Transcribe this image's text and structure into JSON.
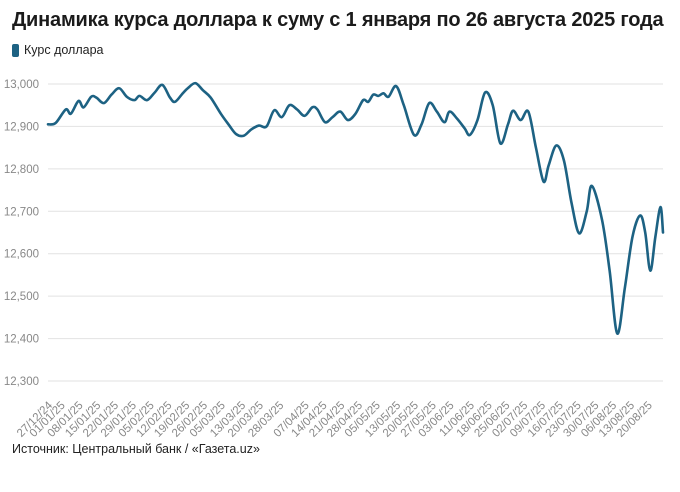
{
  "title": "Динамика курса доллара к суму с 1 января по 26 августа 2025 года",
  "source": "Источник: Центральный банк / «Газета.uz»",
  "colors": {
    "line": "#1d6283",
    "grid": "#e2e2e2",
    "tick_text": "#888888"
  },
  "chart_data": {
    "type": "line",
    "title": "Динамика курса доллара к суму с 1 января по 26 августа 2025 года",
    "xlabel": "",
    "ylabel": "",
    "ylim": [
      12300,
      13000
    ],
    "yticks": [
      12300,
      12400,
      12500,
      12600,
      12700,
      12800,
      12900,
      13000
    ],
    "ytick_labels": [
      "12,300",
      "12,400",
      "12,500",
      "12,600",
      "12,700",
      "12,800",
      "12,900",
      "13,000"
    ],
    "xlim": [
      "2024-12-27",
      "2025-08-26"
    ],
    "xtick_labels": [
      "27/12/24",
      "01/01/25",
      "08/01/25",
      "15/01/25",
      "22/01/25",
      "29/01/25",
      "05/02/25",
      "12/02/25",
      "19/02/25",
      "26/02/25",
      "05/03/25",
      "13/03/25",
      "20/03/25",
      "28/03/25",
      "07/04/25",
      "14/04/25",
      "21/04/25",
      "28/04/25",
      "05/05/25",
      "13/05/25",
      "20/05/25",
      "27/05/25",
      "03/06/25",
      "11/06/25",
      "18/06/25",
      "25/06/25",
      "02/07/25",
      "09/07/25",
      "16/07/25",
      "23/07/25",
      "30/07/25",
      "06/08/25",
      "13/08/25",
      "20/08/25"
    ],
    "xticks": [
      "2024-12-27",
      "2025-01-01",
      "2025-01-08",
      "2025-01-15",
      "2025-01-22",
      "2025-01-29",
      "2025-02-05",
      "2025-02-12",
      "2025-02-19",
      "2025-02-26",
      "2025-03-05",
      "2025-03-13",
      "2025-03-20",
      "2025-03-28",
      "2025-04-07",
      "2025-04-14",
      "2025-04-21",
      "2025-04-28",
      "2025-05-05",
      "2025-05-13",
      "2025-05-20",
      "2025-05-27",
      "2025-06-03",
      "2025-06-11",
      "2025-06-18",
      "2025-06-25",
      "2025-07-02",
      "2025-07-09",
      "2025-07-16",
      "2025-07-23",
      "2025-07-30",
      "2025-08-06",
      "2025-08-13",
      "2025-08-20"
    ],
    "grid": true,
    "legend": "top-left",
    "series": [
      {
        "name": "Курс доллара",
        "points": [
          [
            "2024-12-27",
            12905
          ],
          [
            "2024-12-30",
            12908
          ],
          [
            "2025-01-03",
            12940
          ],
          [
            "2025-01-05",
            12930
          ],
          [
            "2025-01-08",
            12960
          ],
          [
            "2025-01-10",
            12945
          ],
          [
            "2025-01-13",
            12970
          ],
          [
            "2025-01-15",
            12968
          ],
          [
            "2025-01-18",
            12955
          ],
          [
            "2025-01-21",
            12975
          ],
          [
            "2025-01-24",
            12990
          ],
          [
            "2025-01-27",
            12970
          ],
          [
            "2025-01-30",
            12962
          ],
          [
            "2025-02-01",
            12972
          ],
          [
            "2025-02-04",
            12962
          ],
          [
            "2025-02-07",
            12980
          ],
          [
            "2025-02-10",
            12998
          ],
          [
            "2025-02-13",
            12968
          ],
          [
            "2025-02-15",
            12958
          ],
          [
            "2025-02-18",
            12978
          ],
          [
            "2025-02-20",
            12990
          ],
          [
            "2025-02-23",
            13002
          ],
          [
            "2025-02-26",
            12985
          ],
          [
            "2025-03-01",
            12968
          ],
          [
            "2025-03-05",
            12930
          ],
          [
            "2025-03-08",
            12905
          ],
          [
            "2025-03-11",
            12882
          ],
          [
            "2025-03-14",
            12878
          ],
          [
            "2025-03-17",
            12893
          ],
          [
            "2025-03-20",
            12902
          ],
          [
            "2025-03-23",
            12900
          ],
          [
            "2025-03-26",
            12938
          ],
          [
            "2025-03-29",
            12922
          ],
          [
            "2025-04-01",
            12950
          ],
          [
            "2025-04-04",
            12940
          ],
          [
            "2025-04-07",
            12925
          ],
          [
            "2025-04-10",
            12945
          ],
          [
            "2025-04-12",
            12940
          ],
          [
            "2025-04-15",
            12910
          ],
          [
            "2025-04-18",
            12922
          ],
          [
            "2025-04-21",
            12935
          ],
          [
            "2025-04-24",
            12915
          ],
          [
            "2025-04-27",
            12930
          ],
          [
            "2025-04-30",
            12962
          ],
          [
            "2025-05-02",
            12958
          ],
          [
            "2025-05-04",
            12975
          ],
          [
            "2025-05-06",
            12972
          ],
          [
            "2025-05-08",
            12978
          ],
          [
            "2025-05-10",
            12970
          ],
          [
            "2025-05-13",
            12995
          ],
          [
            "2025-05-16",
            12950
          ],
          [
            "2025-05-20",
            12880
          ],
          [
            "2025-05-23",
            12905
          ],
          [
            "2025-05-26",
            12955
          ],
          [
            "2025-05-29",
            12935
          ],
          [
            "2025-06-01",
            12910
          ],
          [
            "2025-06-03",
            12935
          ],
          [
            "2025-06-06",
            12918
          ],
          [
            "2025-06-09",
            12895
          ],
          [
            "2025-06-11",
            12880
          ],
          [
            "2025-06-14",
            12915
          ],
          [
            "2025-06-17",
            12980
          ],
          [
            "2025-06-20",
            12950
          ],
          [
            "2025-06-23",
            12860
          ],
          [
            "2025-06-26",
            12905
          ],
          [
            "2025-06-28",
            12937
          ],
          [
            "2025-07-01",
            12915
          ],
          [
            "2025-07-04",
            12935
          ],
          [
            "2025-07-07",
            12850
          ],
          [
            "2025-07-10",
            12770
          ],
          [
            "2025-07-12",
            12808
          ],
          [
            "2025-07-15",
            12855
          ],
          [
            "2025-07-18",
            12820
          ],
          [
            "2025-07-21",
            12720
          ],
          [
            "2025-07-24",
            12648
          ],
          [
            "2025-07-27",
            12700
          ],
          [
            "2025-07-29",
            12760
          ],
          [
            "2025-08-02",
            12680
          ],
          [
            "2025-08-05",
            12560
          ],
          [
            "2025-08-08",
            12412
          ],
          [
            "2025-08-11",
            12520
          ],
          [
            "2025-08-14",
            12640
          ],
          [
            "2025-08-17",
            12690
          ],
          [
            "2025-08-19",
            12650
          ],
          [
            "2025-08-21",
            12560
          ],
          [
            "2025-08-23",
            12640
          ],
          [
            "2025-08-25",
            12710
          ],
          [
            "2025-08-26",
            12650
          ]
        ]
      }
    ]
  }
}
